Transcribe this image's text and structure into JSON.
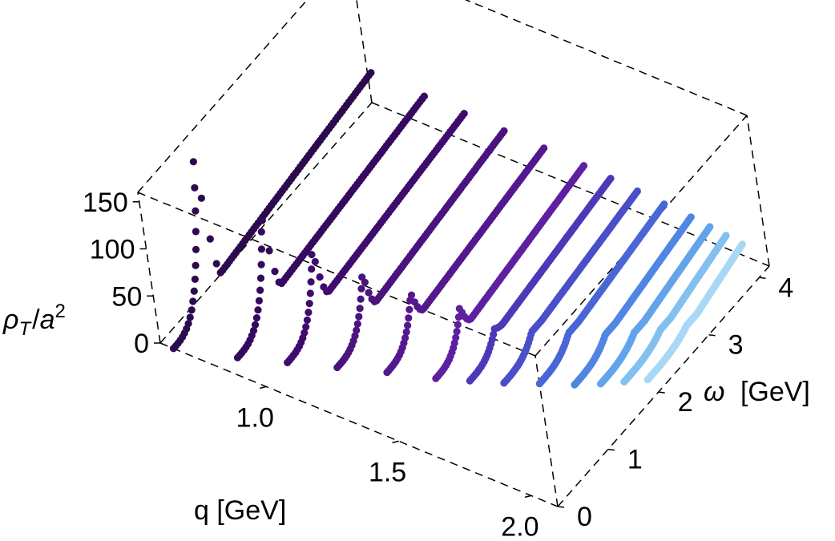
{
  "chart_data": {
    "type": "scatter",
    "style": "3d-point-series",
    "xlabel": "q [GeV]",
    "ylabel": "ω [GeV]",
    "ylabel_symbol": "ω",
    "ylabel_unit": "[GeV]",
    "zlabel": "ρT/a2",
    "zlabel_parts": {
      "rho": "ρ",
      "sub": "T",
      "slash": "/",
      "a": "a",
      "sup": "2"
    },
    "xlim": [
      0.6,
      2.1
    ],
    "ylim": [
      0,
      4.2
    ],
    "zlim": [
      0,
      160
    ],
    "x_ticks": [
      "1.0",
      "1.5",
      "2.0"
    ],
    "x_tick_values": [
      1.0,
      1.5,
      2.0
    ],
    "y_ticks": [
      "0",
      "1",
      "2",
      "3",
      "4"
    ],
    "y_tick_values": [
      0,
      1,
      2,
      3,
      4
    ],
    "z_ticks": [
      "0",
      "50",
      "100",
      "150"
    ],
    "z_tick_values": [
      0,
      50,
      100,
      150
    ],
    "box": "dashed",
    "grid": false,
    "series": [
      {
        "q": 0.65,
        "color": "#2c0a4e",
        "onset": 0.0,
        "peak_omega": 0.82,
        "peak_height": 155,
        "min_omega": 1.0,
        "min_height": 20,
        "tail_height": 48
      },
      {
        "q": 0.85,
        "color": "#35095e",
        "onset": 0.22,
        "peak_omega": 0.98,
        "peak_height": 105,
        "min_omega": 1.15,
        "min_height": 22,
        "tail_height": 46
      },
      {
        "q": 1.0,
        "color": "#3f0c6e",
        "onset": 0.42,
        "peak_omega": 1.12,
        "peak_height": 78,
        "min_omega": 1.3,
        "min_height": 22,
        "tail_height": 45
      },
      {
        "q": 1.15,
        "color": "#4a137e",
        "onset": 0.62,
        "peak_omega": 1.28,
        "peak_height": 60,
        "min_omega": 1.45,
        "min_height": 20,
        "tail_height": 44
      },
      {
        "q": 1.3,
        "color": "#54188e",
        "onset": 0.82,
        "peak_omega": 1.42,
        "peak_height": 48,
        "min_omega": 1.6,
        "min_height": 20,
        "tail_height": 43
      },
      {
        "q": 1.45,
        "color": "#5e20a0",
        "onset": 1.0,
        "peak_omega": 1.58,
        "peak_height": 40,
        "min_omega": 1.75,
        "min_height": 18,
        "tail_height": 42
      },
      {
        "q": 1.55,
        "color": "#4f37b8",
        "onset": 1.15,
        "peak_omega": 1.7,
        "peak_height": 22,
        "min_omega": 1.85,
        "min_height": 18,
        "tail_height": 40
      },
      {
        "q": 1.65,
        "color": "#4a4ec9",
        "onset": 1.3,
        "peak_omega": 1.9,
        "peak_height": 18,
        "min_omega": 2.1,
        "min_height": 18,
        "tail_height": 38
      },
      {
        "q": 1.75,
        "color": "#4866d6",
        "onset": 1.48,
        "peak_omega": 2.1,
        "peak_height": 16,
        "min_omega": 2.3,
        "min_height": 16,
        "tail_height": 36
      },
      {
        "q": 1.85,
        "color": "#4f86e2",
        "onset": 1.65,
        "peak_omega": 2.3,
        "peak_height": 14,
        "min_omega": 2.5,
        "min_height": 14,
        "tail_height": 34
      },
      {
        "q": 1.92,
        "color": "#62a3ea",
        "onset": 1.8,
        "peak_omega": 2.5,
        "peak_height": 12,
        "min_omega": 2.7,
        "min_height": 12,
        "tail_height": 32
      },
      {
        "q": 1.98,
        "color": "#82c0f0",
        "onset": 1.95,
        "peak_omega": 2.7,
        "peak_height": 10,
        "min_omega": 2.9,
        "min_height": 10,
        "tail_height": 30
      },
      {
        "q": 2.04,
        "color": "#a8d8f6",
        "onset": 2.1,
        "peak_omega": 2.9,
        "peak_height": 9,
        "min_omega": 3.1,
        "min_height": 9,
        "tail_height": 28
      }
    ]
  }
}
